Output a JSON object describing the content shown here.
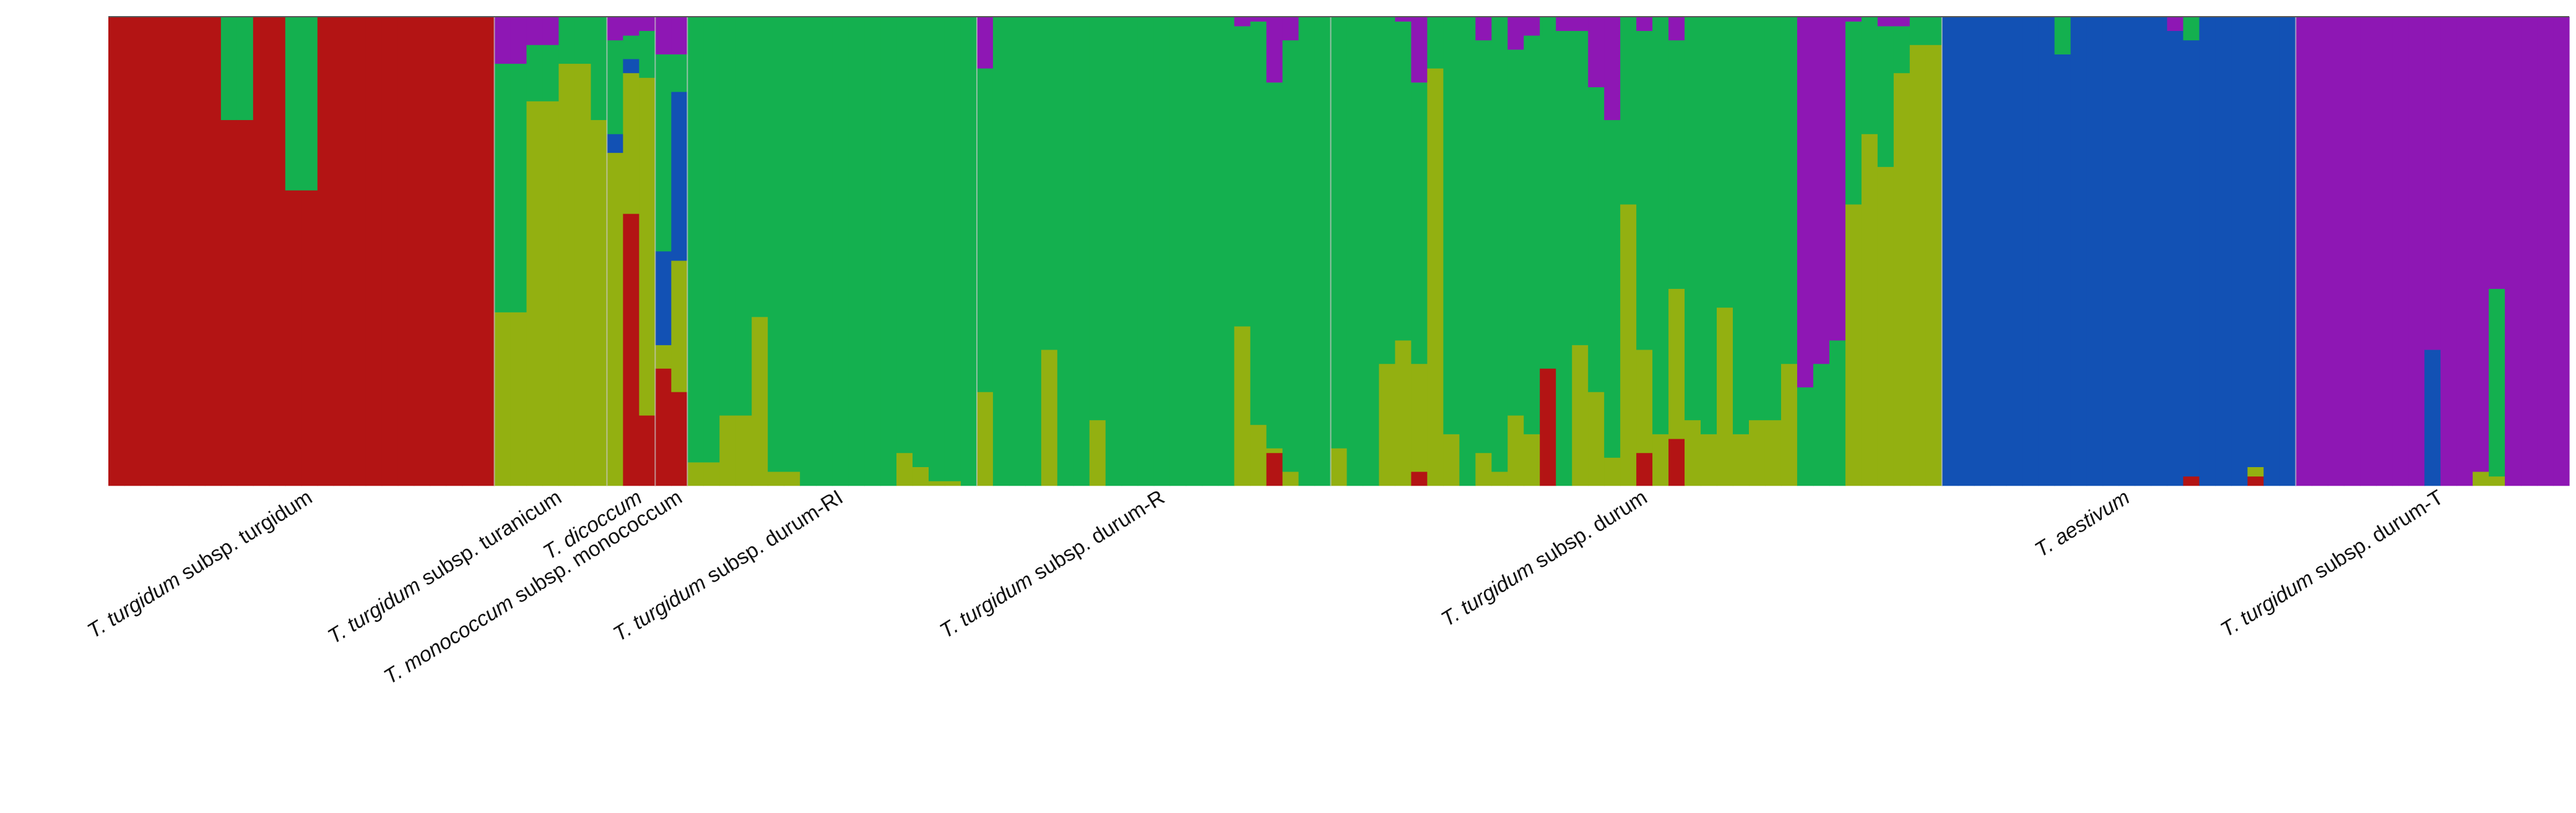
{
  "chart_data": {
    "type": "stacked-bar",
    "title": "",
    "xlabel": "",
    "ylabel": "",
    "ylim": [
      0,
      1
    ],
    "grid": false,
    "legend": "none",
    "clusters": [
      {
        "id": "c1",
        "color": "#b31414"
      },
      {
        "id": "c2",
        "color": "#14b04f"
      },
      {
        "id": "c3",
        "color": "#93b011"
      },
      {
        "id": "c4",
        "color": "#1251b4"
      },
      {
        "id": "c5",
        "color": "#8e17b4"
      }
    ],
    "cluster_order_bottom_to_top": [
      "c1",
      "c3",
      "c4",
      "c2",
      "c5"
    ],
    "groups": [
      {
        "label_italic": "T. turgidum",
        "label_rest": " subsp. turgidum",
        "individuals": [
          [
            1,
            0,
            0,
            0,
            0
          ],
          [
            1,
            0,
            0,
            0,
            0
          ],
          [
            1,
            0,
            0,
            0,
            0
          ],
          [
            1,
            0,
            0,
            0,
            0
          ],
          [
            1,
            0,
            0,
            0,
            0
          ],
          [
            1,
            0,
            0,
            0,
            0
          ],
          [
            1,
            0,
            0,
            0,
            0
          ],
          [
            0.78,
            0.22,
            0,
            0,
            0
          ],
          [
            0.78,
            0.22,
            0,
            0,
            0
          ],
          [
            1,
            0,
            0,
            0,
            0
          ],
          [
            1,
            0,
            0,
            0,
            0
          ],
          [
            0.63,
            0.37,
            0,
            0,
            0
          ],
          [
            0.63,
            0.37,
            0,
            0,
            0
          ],
          [
            1,
            0,
            0,
            0,
            0
          ],
          [
            1,
            0,
            0,
            0,
            0
          ],
          [
            1,
            0,
            0,
            0,
            0
          ],
          [
            1,
            0,
            0,
            0,
            0
          ],
          [
            1,
            0,
            0,
            0,
            0
          ],
          [
            1,
            0,
            0,
            0,
            0
          ],
          [
            1,
            0,
            0,
            0,
            0
          ],
          [
            1,
            0,
            0,
            0,
            0
          ],
          [
            1,
            0,
            0,
            0,
            0
          ],
          [
            1,
            0,
            0,
            0,
            0
          ],
          [
            1,
            0,
            0,
            0,
            0
          ]
        ]
      },
      {
        "label_italic": "T. turgidum",
        "label_rest": " subsp. turanicum",
        "individuals": [
          [
            0,
            0.53,
            0.37,
            0,
            0.1
          ],
          [
            0,
            0.53,
            0.37,
            0,
            0.1
          ],
          [
            0,
            0.12,
            0.82,
            0,
            0.06
          ],
          [
            0,
            0.12,
            0.82,
            0,
            0.06
          ],
          [
            0,
            0.1,
            0.9,
            0,
            0
          ],
          [
            0,
            0.1,
            0.9,
            0,
            0
          ],
          [
            0,
            0.22,
            0.78,
            0,
            0
          ]
        ]
      },
      {
        "label_italic": "T. dicoccum",
        "label_rest": "",
        "individuals": [
          [
            0,
            0.2,
            0.71,
            0.04,
            0.05
          ],
          [
            0.58,
            0.05,
            0.3,
            0.03,
            0.04
          ],
          [
            0.15,
            0.1,
            0.72,
            0,
            0.03
          ]
        ]
      },
      {
        "label_italic": "T. monococcum",
        "label_rest": " subsp. monococcum",
        "individuals": [
          [
            0.25,
            0.42,
            0.05,
            0.2,
            0.08
          ],
          [
            0.2,
            0.08,
            0.28,
            0.36,
            0.08
          ]
        ]
      },
      {
        "label_italic": "T. turgidum",
        "label_rest": " subsp. durum-RI",
        "individuals": [
          [
            0,
            0.95,
            0.05,
            0,
            0
          ],
          [
            0,
            0.95,
            0.05,
            0,
            0
          ],
          [
            0,
            0.85,
            0.15,
            0,
            0
          ],
          [
            0,
            0.85,
            0.15,
            0,
            0
          ],
          [
            0,
            0.64,
            0.36,
            0,
            0
          ],
          [
            0,
            0.97,
            0.03,
            0,
            0
          ],
          [
            0,
            0.97,
            0.03,
            0,
            0
          ],
          [
            0,
            1,
            0,
            0,
            0
          ],
          [
            0,
            1,
            0,
            0,
            0
          ],
          [
            0,
            1,
            0,
            0,
            0
          ],
          [
            0,
            1,
            0,
            0,
            0
          ],
          [
            0,
            1,
            0,
            0,
            0
          ],
          [
            0,
            1,
            0,
            0,
            0
          ],
          [
            0,
            0.93,
            0.07,
            0,
            0
          ],
          [
            0,
            0.96,
            0.04,
            0,
            0
          ],
          [
            0,
            0.99,
            0.01,
            0,
            0
          ],
          [
            0,
            0.99,
            0.01,
            0,
            0
          ],
          [
            0,
            1,
            0,
            0,
            0
          ]
        ]
      },
      {
        "label_italic": "T. turgidum",
        "label_rest": " subsp. durum-R",
        "individuals": [
          [
            0,
            0.69,
            0.2,
            0,
            0.11
          ],
          [
            0,
            1,
            0,
            0,
            0
          ],
          [
            0,
            1,
            0,
            0,
            0
          ],
          [
            0,
            1,
            0,
            0,
            0
          ],
          [
            0,
            0.71,
            0.29,
            0,
            0
          ],
          [
            0,
            1,
            0,
            0,
            0
          ],
          [
            0,
            1,
            0,
            0,
            0
          ],
          [
            0,
            0.86,
            0.14,
            0,
            0
          ],
          [
            0,
            1,
            0,
            0,
            0
          ],
          [
            0,
            1,
            0,
            0,
            0
          ],
          [
            0,
            1,
            0,
            0,
            0
          ],
          [
            0,
            1,
            0,
            0,
            0
          ],
          [
            0,
            1,
            0,
            0,
            0
          ],
          [
            0,
            1,
            0,
            0,
            0
          ],
          [
            0,
            1,
            0,
            0,
            0
          ],
          [
            0,
            1,
            0,
            0,
            0
          ],
          [
            0,
            0.64,
            0.34,
            0,
            0.02
          ],
          [
            0,
            0.86,
            0.13,
            0,
            0.01
          ],
          [
            0.07,
            0.78,
            0.01,
            0,
            0.14
          ],
          [
            0,
            0.92,
            0.03,
            0,
            0.05
          ],
          [
            0,
            1,
            0,
            0,
            0
          ],
          [
            0,
            1,
            0,
            0,
            0
          ]
        ]
      },
      {
        "label_italic": "T. turgidum",
        "label_rest": " subsp. durum",
        "individuals": [
          [
            0,
            0.92,
            0.08,
            0,
            0
          ],
          [
            0,
            1,
            0,
            0,
            0
          ],
          [
            0,
            1,
            0,
            0,
            0
          ],
          [
            0,
            0.74,
            0.26,
            0,
            0
          ],
          [
            0,
            0.68,
            0.31,
            0,
            0.01
          ],
          [
            0.03,
            0.6,
            0.23,
            0,
            0.14
          ],
          [
            0,
            0.11,
            0.89,
            0,
            0
          ],
          [
            0,
            0.89,
            0.11,
            0,
            0
          ],
          [
            0,
            1,
            0,
            0,
            0
          ],
          [
            0,
            0.88,
            0.07,
            0,
            0.05
          ],
          [
            0,
            0.97,
            0.03,
            0,
            0
          ],
          [
            0,
            0.78,
            0.15,
            0,
            0.07
          ],
          [
            0,
            0.85,
            0.11,
            0,
            0.04
          ],
          [
            0.25,
            0.75,
            0,
            0,
            0
          ],
          [
            0,
            0.97,
            0,
            0,
            0.03
          ],
          [
            0,
            0.67,
            0.3,
            0,
            0.03
          ],
          [
            0,
            0.65,
            0.2,
            0,
            0.15
          ],
          [
            0,
            0.72,
            0.06,
            0,
            0.22
          ],
          [
            0,
            0.4,
            0.6,
            0,
            0
          ],
          [
            0.07,
            0.68,
            0.22,
            0,
            0.03
          ],
          [
            0,
            0.89,
            0.11,
            0,
            0
          ],
          [
            0.1,
            0.53,
            0.32,
            0,
            0.05
          ],
          [
            0,
            0.86,
            0.14,
            0,
            0
          ],
          [
            0,
            0.89,
            0.11,
            0,
            0
          ],
          [
            0,
            0.62,
            0.38,
            0,
            0
          ],
          [
            0,
            0.89,
            0.11,
            0,
            0
          ],
          [
            0,
            0.86,
            0.14,
            0,
            0
          ],
          [
            0,
            0.86,
            0.14,
            0,
            0
          ],
          [
            0,
            0.74,
            0.26,
            0,
            0
          ],
          [
            0,
            0.21,
            0,
            0,
            0.79
          ],
          [
            0,
            0.26,
            0,
            0,
            0.74
          ],
          [
            0,
            0.31,
            0,
            0,
            0.69
          ],
          [
            0,
            0.39,
            0.6,
            0,
            0.01
          ],
          [
            0,
            0.25,
            0.75,
            0,
            0
          ],
          [
            0,
            0.3,
            0.68,
            0,
            0.02
          ],
          [
            0,
            0.1,
            0.88,
            0,
            0.02
          ],
          [
            0,
            0.06,
            0.94,
            0,
            0
          ],
          [
            0,
            0.06,
            0.94,
            0,
            0
          ]
        ]
      },
      {
        "label_italic": "T. aestivum",
        "label_rest": "",
        "individuals": [
          [
            0,
            0,
            0,
            1,
            0
          ],
          [
            0,
            0,
            0,
            1,
            0
          ],
          [
            0,
            0,
            0,
            1,
            0
          ],
          [
            0,
            0,
            0,
            1,
            0
          ],
          [
            0,
            0,
            0,
            1,
            0
          ],
          [
            0,
            0,
            0,
            1,
            0
          ],
          [
            0,
            0,
            0,
            1,
            0
          ],
          [
            0,
            0.08,
            0,
            0.92,
            0
          ],
          [
            0,
            0,
            0,
            1,
            0
          ],
          [
            0,
            0,
            0,
            1,
            0
          ],
          [
            0,
            0,
            0,
            1,
            0
          ],
          [
            0,
            0,
            0,
            1,
            0
          ],
          [
            0,
            0,
            0,
            1,
            0
          ],
          [
            0,
            0,
            0,
            1,
            0
          ],
          [
            0,
            0,
            0,
            0.97,
            0.03
          ],
          [
            0.02,
            0.05,
            0,
            0.93,
            0
          ],
          [
            0,
            0,
            0,
            1,
            0
          ],
          [
            0,
            0,
            0,
            1,
            0
          ],
          [
            0,
            0,
            0,
            1,
            0
          ],
          [
            0.02,
            0,
            0.02,
            0.96,
            0
          ],
          [
            0,
            0,
            0,
            1,
            0
          ],
          [
            0,
            0,
            0,
            1,
            0
          ]
        ]
      },
      {
        "label_italic": "T. turgidum",
        "label_rest": " subsp. durum-T",
        "individuals": [
          [
            0,
            0,
            0,
            0,
            1
          ],
          [
            0,
            0,
            0,
            0,
            1
          ],
          [
            0,
            0,
            0,
            0,
            1
          ],
          [
            0,
            0,
            0,
            0,
            1
          ],
          [
            0,
            0,
            0,
            0,
            1
          ],
          [
            0,
            0,
            0,
            0,
            1
          ],
          [
            0,
            0,
            0,
            0,
            1
          ],
          [
            0,
            0,
            0,
            0,
            1
          ],
          [
            0,
            0,
            0,
            0.29,
            0.71
          ],
          [
            0,
            0,
            0,
            0,
            1
          ],
          [
            0,
            0,
            0,
            0,
            1
          ],
          [
            0,
            0,
            0.03,
            0,
            0.97
          ],
          [
            0,
            0.4,
            0.02,
            0,
            0.58
          ],
          [
            0,
            0,
            0,
            0,
            1
          ],
          [
            0,
            0,
            0,
            0,
            1
          ],
          [
            0,
            0,
            0,
            0,
            1
          ],
          [
            0,
            0,
            0,
            0,
            1
          ]
        ]
      }
    ]
  }
}
